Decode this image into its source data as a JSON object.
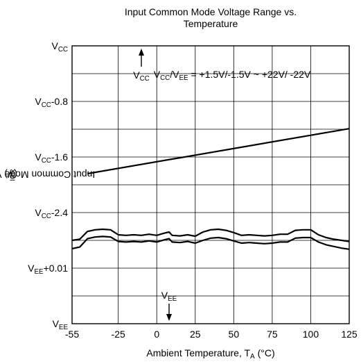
{
  "title_line1": "Input Common Mode Voltage Range vs.",
  "title_line2": "Temperature",
  "chart_data": {
    "type": "line",
    "title": "Input Common Mode Voltage Range vs. Temperature",
    "xlabel": {
      "text": "Ambient Temperature, T",
      "sub": "A",
      "after": " (°C)"
    },
    "ylabel": {
      "text": "Input Common Mode Voltage Range, V",
      "sub": "ICR",
      "after": " (V)"
    },
    "xlim": [
      -55,
      125
    ],
    "x_ticks": [
      -55,
      -25,
      0,
      25,
      50,
      75,
      100,
      125
    ],
    "y_ticks": [
      {
        "level": 0,
        "main": "V",
        "sub": "CC",
        "after": ""
      },
      {
        "level": 2,
        "main": "V",
        "sub": "CC",
        "after": "-0.8"
      },
      {
        "level": 4,
        "main": "V",
        "sub": "CC",
        "after": "-1.6"
      },
      {
        "level": 6,
        "main": "V",
        "sub": "CC",
        "after": "-2.4"
      },
      {
        "level": 8,
        "main": "V",
        "sub": "EE",
        "after": "+0.01"
      },
      {
        "level": 10,
        "main": "V",
        "sub": "EE",
        "after": ""
      }
    ],
    "grid": true,
    "annotation_condition": {
      "parts": [
        [
          "V",
          "CC"
        ],
        [
          "/V",
          "EE"
        ],
        [
          " = +1.5V/-1.5V ~ +22V/ -22V",
          ""
        ]
      ]
    },
    "annotation_vcc": {
      "main": "V",
      "sub": "CC"
    },
    "annotation_vee": {
      "main": "V",
      "sub": "EE"
    },
    "series": [
      {
        "id": "upper-limit",
        "x": [
          -45,
          125
        ],
        "level": [
          4.6,
          2.98
        ]
      },
      {
        "id": "lower-limit-a",
        "x": [
          -55,
          -50,
          -45,
          -40,
          -35,
          -30,
          -25,
          -20,
          -15,
          -10,
          -5,
          0,
          5,
          8,
          10,
          15,
          20,
          25,
          30,
          35,
          40,
          45,
          50,
          55,
          60,
          65,
          70,
          75,
          80,
          85,
          90,
          95,
          100,
          105,
          110,
          115,
          120,
          125
        ],
        "level": [
          7.0,
          6.96,
          6.68,
          6.62,
          6.6,
          6.62,
          6.8,
          6.82,
          6.8,
          6.82,
          6.78,
          6.82,
          6.74,
          6.7,
          6.82,
          6.84,
          6.8,
          6.85,
          6.7,
          6.62,
          6.6,
          6.64,
          6.72,
          6.82,
          6.8,
          6.82,
          6.84,
          6.82,
          6.78,
          6.78,
          6.64,
          6.62,
          6.62,
          6.8,
          6.9,
          6.96,
          7.0,
          7.04
        ]
      },
      {
        "id": "lower-limit-b",
        "x": [
          -55,
          -50,
          -45,
          -40,
          -35,
          -30,
          -25,
          -20,
          -15,
          -10,
          -5,
          0,
          5,
          8,
          10,
          15,
          20,
          25,
          30,
          35,
          40,
          45,
          50,
          55,
          60,
          65,
          70,
          75,
          80,
          85,
          90,
          95,
          100,
          105,
          110,
          115,
          120,
          125
        ],
        "level": [
          7.3,
          7.24,
          6.94,
          6.88,
          6.86,
          6.88,
          7.04,
          7.06,
          7.04,
          7.06,
          7.02,
          7.06,
          6.98,
          6.94,
          7.06,
          7.08,
          7.04,
          7.1,
          7.0,
          6.92,
          6.9,
          6.94,
          7.02,
          7.1,
          7.08,
          7.1,
          7.12,
          7.1,
          7.06,
          7.06,
          6.92,
          6.9,
          6.9,
          7.06,
          7.16,
          7.22,
          7.28,
          7.32
        ]
      }
    ]
  }
}
